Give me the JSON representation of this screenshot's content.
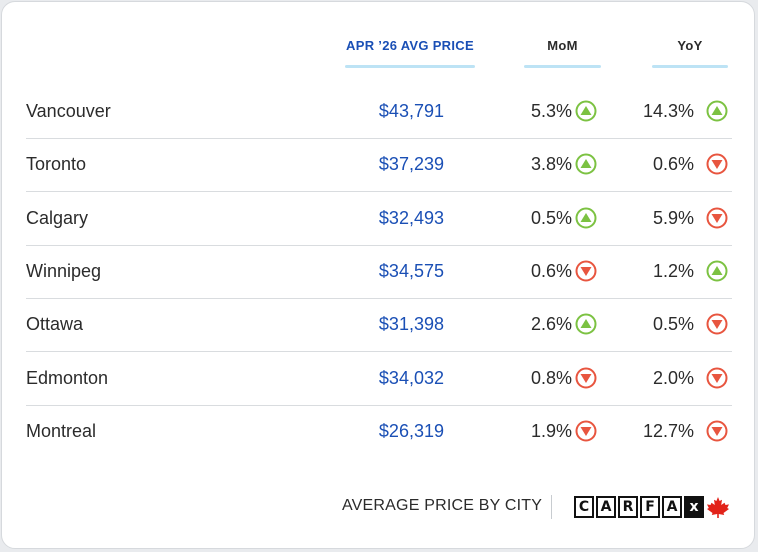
{
  "headers": {
    "price": "APR ’26 AVG PRICE",
    "mom": "MoM",
    "yoy": "YoY"
  },
  "rows": [
    {
      "city": "Vancouver",
      "price": "$43,791",
      "mom": "5.3%",
      "mom_dir": "up",
      "yoy": "14.3%",
      "yoy_dir": "up"
    },
    {
      "city": "Toronto",
      "price": "$37,239",
      "mom": "3.8%",
      "mom_dir": "up",
      "yoy": "0.6%",
      "yoy_dir": "down"
    },
    {
      "city": "Calgary",
      "price": "$32,493",
      "mom": "0.5%",
      "mom_dir": "up",
      "yoy": "5.9%",
      "yoy_dir": "down"
    },
    {
      "city": "Winnipeg",
      "price": "$34,575",
      "mom": "0.6%",
      "mom_dir": "down",
      "yoy": "1.2%",
      "yoy_dir": "up"
    },
    {
      "city": "Ottawa",
      "price": "$31,398",
      "mom": "2.6%",
      "mom_dir": "up",
      "yoy": "0.5%",
      "yoy_dir": "down"
    },
    {
      "city": "Edmonton",
      "price": "$34,032",
      "mom": "0.8%",
      "mom_dir": "down",
      "yoy": "2.0%",
      "yoy_dir": "down"
    },
    {
      "city": "Montreal",
      "price": "$26,319",
      "mom": "1.9%",
      "mom_dir": "down",
      "yoy": "12.7%",
      "yoy_dir": "down"
    }
  ],
  "footer": {
    "label": "AVERAGE PRICE BY CITY",
    "logo_letters": [
      "C",
      "A",
      "R",
      "F",
      "A",
      "x"
    ],
    "logo_icon": "maple-leaf-icon"
  },
  "colors": {
    "price": "#1a4fb5",
    "up": "#7cc242",
    "down": "#e8553f",
    "header_underline": "#bde3f5"
  }
}
